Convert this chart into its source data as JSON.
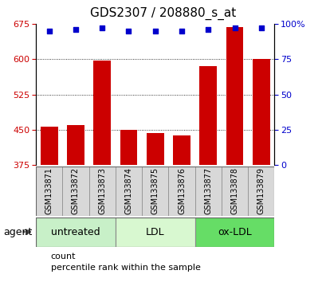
{
  "title": "GDS2307 / 208880_s_at",
  "categories": [
    "GSM133871",
    "GSM133872",
    "GSM133873",
    "GSM133874",
    "GSM133875",
    "GSM133876",
    "GSM133877",
    "GSM133878",
    "GSM133879"
  ],
  "bar_values": [
    457,
    460,
    597,
    449,
    443,
    438,
    585,
    668,
    601
  ],
  "percentile_values": [
    95,
    96,
    97,
    95,
    95,
    95,
    96,
    97,
    97
  ],
  "bar_color": "#cc0000",
  "dot_color": "#0000cc",
  "ylim_left": [
    375,
    675
  ],
  "ylim_right": [
    0,
    100
  ],
  "yticks_left": [
    375,
    450,
    525,
    600,
    675
  ],
  "yticks_right": [
    0,
    25,
    50,
    75,
    100
  ],
  "ytick_labels_right": [
    "0",
    "25",
    "50",
    "75",
    "100%"
  ],
  "grid_values": [
    450,
    525,
    600
  ],
  "groups": [
    {
      "label": "untreated",
      "start": 0,
      "end": 3,
      "color": "#c8f0c8"
    },
    {
      "label": "LDL",
      "start": 3,
      "end": 6,
      "color": "#d8f8d0"
    },
    {
      "label": "ox-LDL",
      "start": 6,
      "end": 9,
      "color": "#66dd66"
    }
  ],
  "legend_items": [
    {
      "label": "count",
      "color": "#cc0000"
    },
    {
      "label": "percentile rank within the sample",
      "color": "#0000cc"
    }
  ],
  "agent_label": "agent",
  "bar_color_left": "#cc0000",
  "dot_color_right": "#0000cc",
  "bar_bottom": 375,
  "title_fontsize": 11,
  "tick_fontsize": 8,
  "label_fontsize": 8,
  "cat_fontsize": 7,
  "group_fontsize": 9
}
